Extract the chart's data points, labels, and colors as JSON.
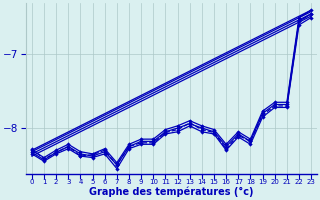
{
  "xlabel": "Graphe des températures (°c)",
  "bg_color": "#daf0f0",
  "line_color": "#0000bb",
  "grid_color": "#adc8c8",
  "xlim": [
    -0.5,
    23.5
  ],
  "ylim": [
    -8.62,
    -6.3
  ],
  "yticks": [
    -8,
    -7
  ],
  "xticks": [
    0,
    1,
    2,
    3,
    4,
    5,
    6,
    7,
    8,
    9,
    10,
    11,
    12,
    13,
    14,
    15,
    16,
    17,
    18,
    19,
    20,
    21,
    22,
    23
  ],
  "trend_lines": [
    {
      "x": [
        0,
        23
      ],
      "y": [
        -8.35,
        -6.45
      ]
    },
    {
      "x": [
        0,
        23
      ],
      "y": [
        -8.38,
        -6.48
      ]
    },
    {
      "x": [
        0,
        23
      ],
      "y": [
        -8.32,
        -6.42
      ]
    },
    {
      "x": [
        0,
        23
      ],
      "y": [
        -8.3,
        -6.4
      ]
    }
  ],
  "series": [
    {
      "y": [
        -8.35,
        -8.45,
        -8.35,
        -8.28,
        -8.38,
        -8.4,
        -8.35,
        -8.55,
        -8.28,
        -8.22,
        -8.22,
        -8.08,
        -8.05,
        -7.97,
        -8.05,
        -8.08,
        -8.3,
        -8.12,
        -8.22,
        -7.85,
        -7.72,
        -7.72,
        -6.6,
        -6.5
      ],
      "style": "-",
      "dashed": false
    },
    {
      "y": [
        -8.33,
        -8.43,
        -8.33,
        -8.25,
        -8.35,
        -8.38,
        -8.32,
        -8.5,
        -8.25,
        -8.18,
        -8.18,
        -8.05,
        -8.0,
        -7.94,
        -8.0,
        -8.05,
        -8.25,
        -8.08,
        -8.18,
        -7.8,
        -7.68,
        -7.68,
        -6.55,
        -6.45
      ],
      "style": "-",
      "dashed": false
    },
    {
      "y": [
        -8.3,
        -8.4,
        -8.3,
        -8.22,
        -8.32,
        -8.35,
        -8.28,
        -8.47,
        -8.22,
        -8.15,
        -8.15,
        -8.02,
        -7.97,
        -7.9,
        -7.97,
        -8.02,
        -8.22,
        -8.05,
        -8.15,
        -7.77,
        -7.65,
        -7.65,
        -6.5,
        -6.4
      ],
      "style": "-",
      "dashed": false
    },
    {
      "y": [
        -8.28,
        -8.42,
        -8.33,
        -8.25,
        -8.38,
        -8.36,
        -8.3,
        -8.5,
        -8.25,
        -8.2,
        -8.2,
        -8.06,
        -8.02,
        -7.93,
        -8.02,
        -8.06,
        -8.28,
        -8.1,
        -8.18,
        -7.82,
        -7.7,
        -7.7,
        -6.55,
        -6.45
      ],
      "style": "--",
      "dashed": true
    }
  ]
}
